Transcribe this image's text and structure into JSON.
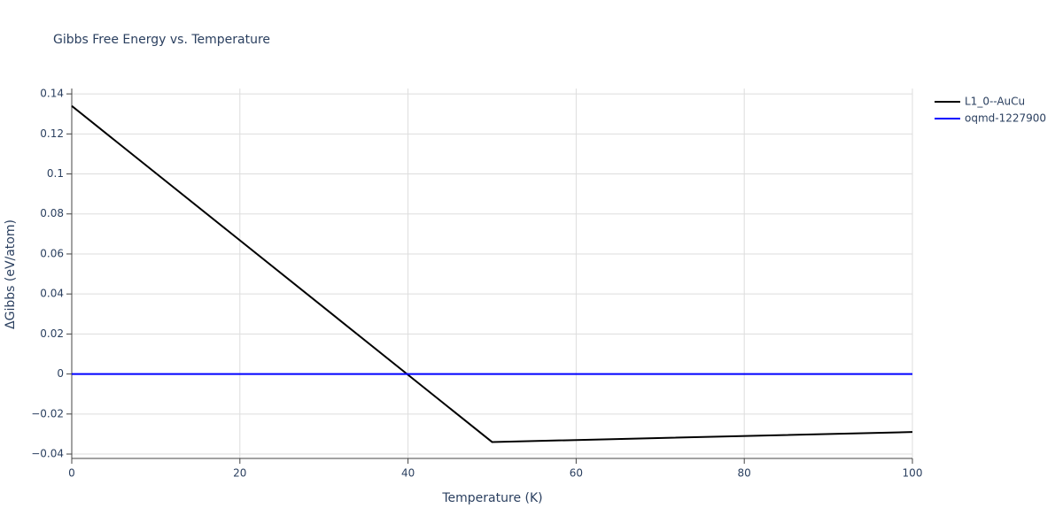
{
  "chart_data": {
    "type": "line",
    "title": "Gibbs Free Energy vs. Temperature",
    "x_label": "Temperature (K)",
    "y_label": "ΔGibbs (eV/atom)",
    "series": [
      {
        "name": "L1_0--AuCu",
        "color": "#000000",
        "x": [
          0,
          50,
          100
        ],
        "values": [
          0.134,
          -0.034,
          -0.029
        ]
      },
      {
        "name": "oqmd-1227900",
        "color": "#0000ff",
        "x": [
          0,
          100
        ],
        "values": [
          0,
          0
        ]
      }
    ],
    "xlim": [
      0,
      100
    ],
    "xticks": [
      0,
      20,
      40,
      60,
      80,
      100
    ],
    "ylim": [
      -0.0422,
      0.1427
    ],
    "yticks": [
      {
        "value": -0.04,
        "label": "−0.04"
      },
      {
        "value": -0.02,
        "label": "−0.02"
      },
      0,
      0.02,
      0.04,
      0.06,
      0.08,
      0.1,
      0.12,
      0.14
    ],
    "grid": true,
    "legend": "right"
  }
}
